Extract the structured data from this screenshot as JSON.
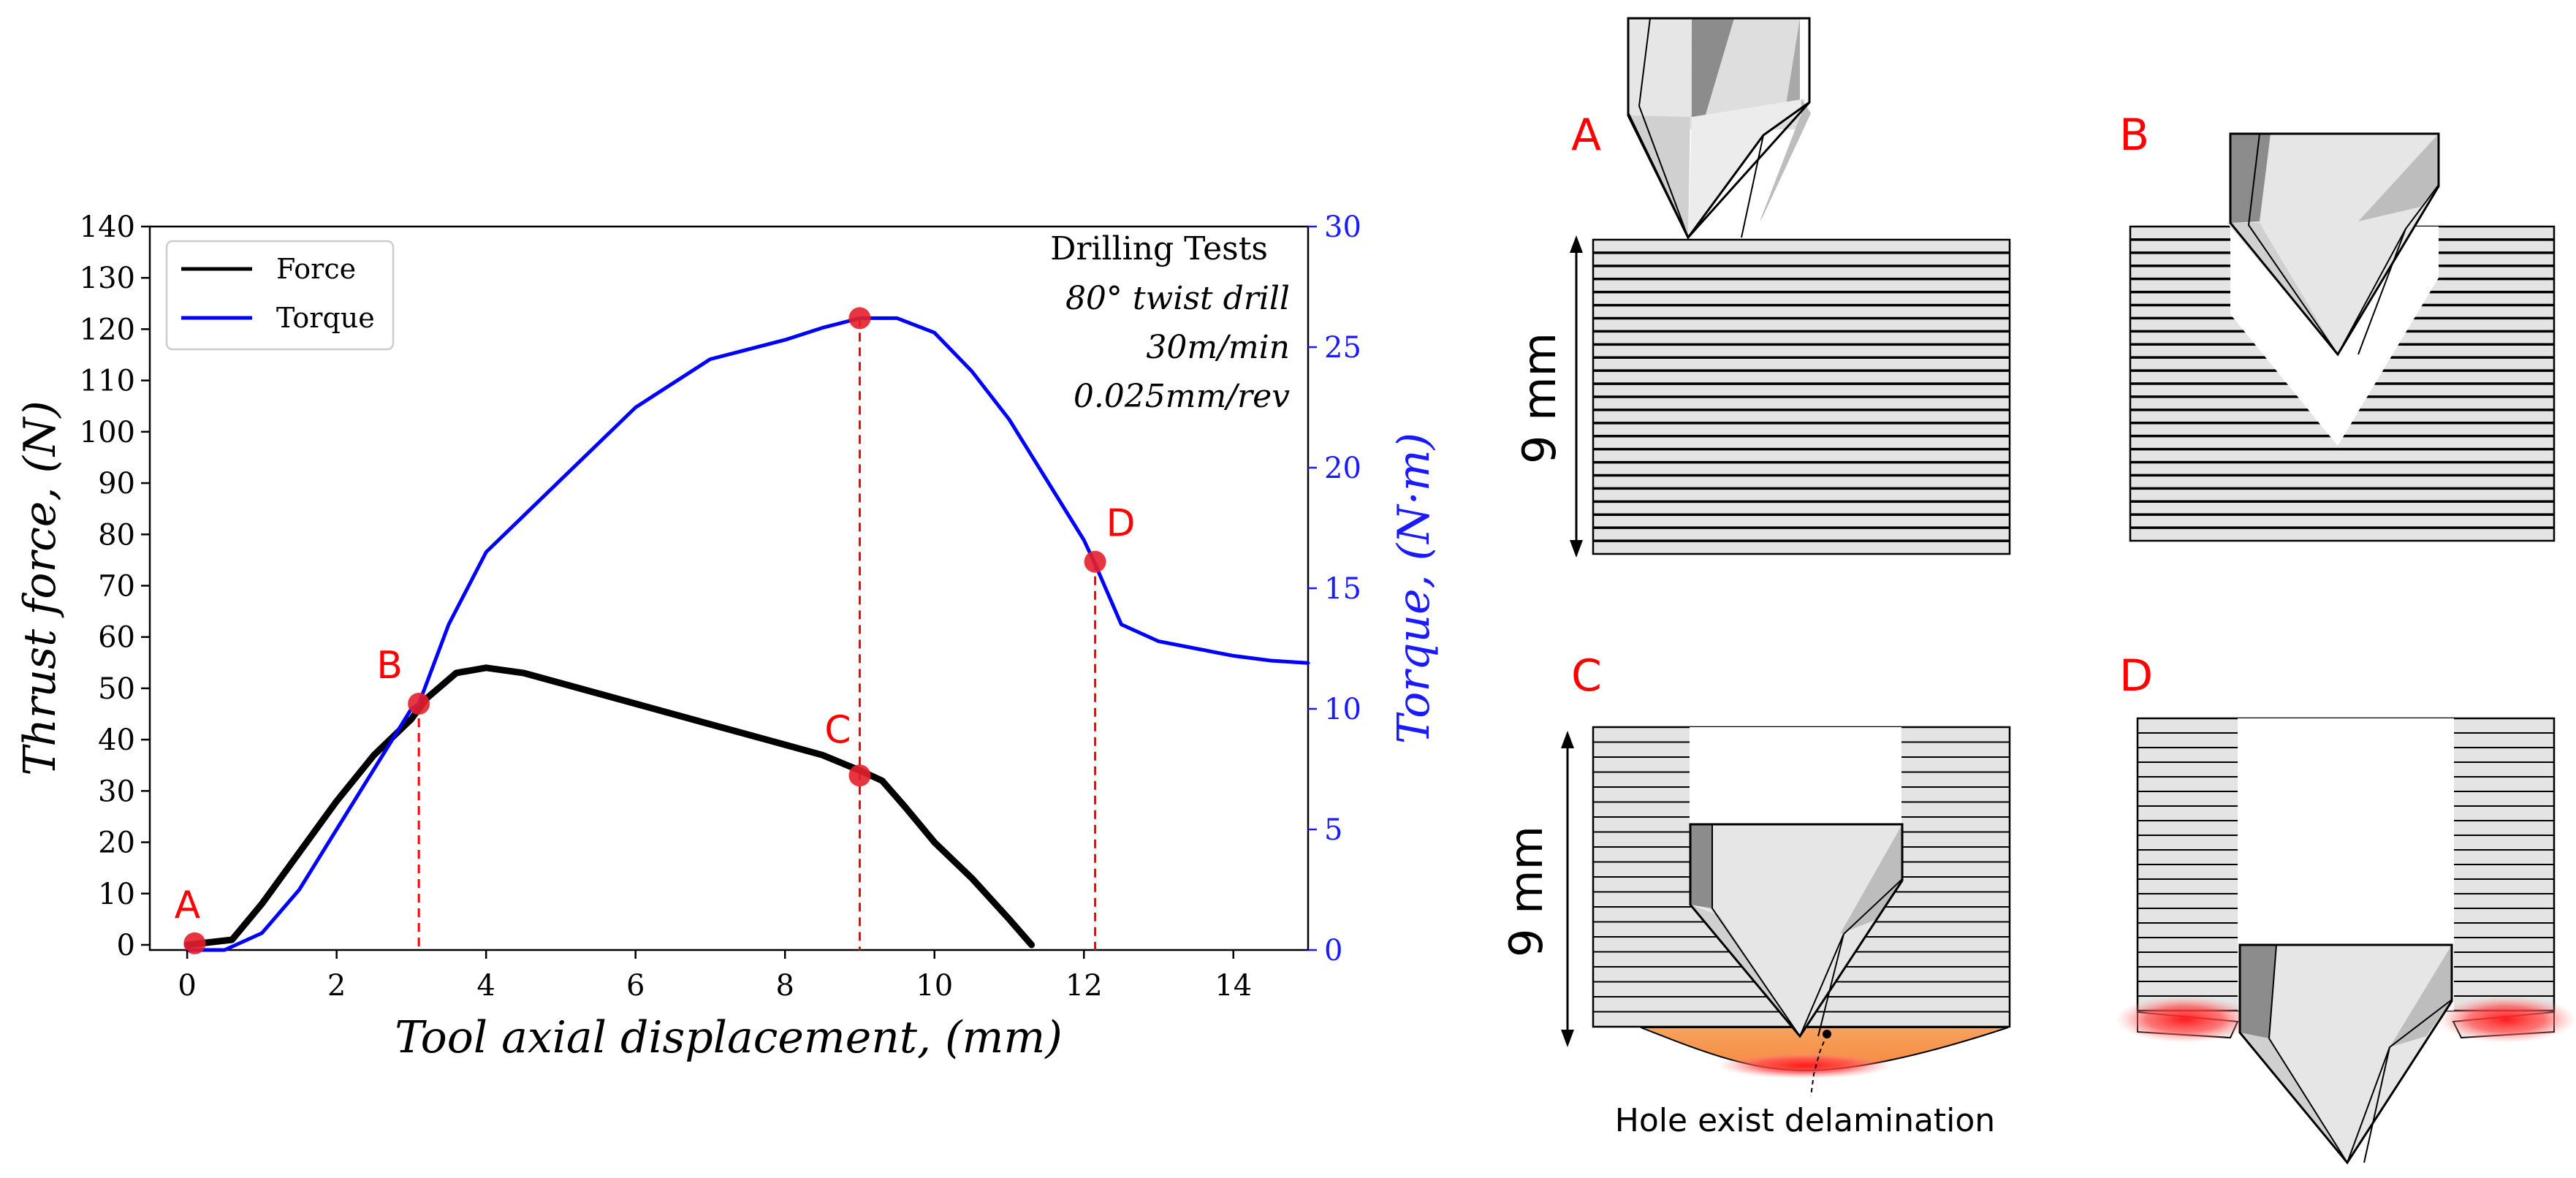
{
  "chart_data": {
    "type": "line",
    "xlabel": "Tool axial displacement, (mm)",
    "ylabel_left": "Thrust force, (N)",
    "ylabel_right": "Torque, (N·m)",
    "xlim": [
      -0.5,
      15
    ],
    "ylim_left": [
      -1,
      140
    ],
    "ylim_right": [
      0,
      30
    ],
    "xticks": [
      "0",
      "2",
      "4",
      "6",
      "8",
      "10",
      "12",
      "14"
    ],
    "yticks_left": [
      "0",
      "10",
      "20",
      "30",
      "40",
      "50",
      "60",
      "70",
      "80",
      "90",
      "100",
      "110",
      "120",
      "130",
      "140"
    ],
    "yticks_right": [
      "0",
      "5",
      "10",
      "15",
      "20",
      "25",
      "30"
    ],
    "grid": false,
    "legend_placement": "top-left",
    "annotation_lines": [
      "Drilling Tests",
      "80° twist drill",
      "30m/min",
      "0.025mm/rev"
    ],
    "series": [
      {
        "name": "Force",
        "color": "#000000",
        "axis": "left",
        "x": [
          0.0,
          0.6,
          1.0,
          1.5,
          2.0,
          2.5,
          3.0,
          3.2,
          3.6,
          4.0,
          4.5,
          5.0,
          6.0,
          7.0,
          8.0,
          8.5,
          9.0,
          9.3,
          9.6,
          10.0,
          10.5,
          11.0,
          11.3
        ],
        "y": [
          0,
          1,
          8,
          18,
          28,
          37,
          44,
          48,
          53,
          54,
          53,
          51,
          47,
          43,
          39,
          37,
          34,
          32,
          27,
          20,
          13,
          5,
          0
        ]
      },
      {
        "name": "Torque",
        "color": "#0000ff",
        "axis": "right",
        "x": [
          0.0,
          0.5,
          1.0,
          1.5,
          2.0,
          2.5,
          3.0,
          3.1,
          3.5,
          4.0,
          5.0,
          6.0,
          7.0,
          8.0,
          8.5,
          9.0,
          9.5,
          10.0,
          10.5,
          11.0,
          11.5,
          12.0,
          12.15,
          12.5,
          13.0,
          13.5,
          14.0,
          14.5,
          15.0
        ],
        "y": [
          0,
          0,
          0.7,
          2.5,
          5,
          7.5,
          10,
          10.2,
          13.5,
          16.5,
          19.5,
          22.5,
          24.5,
          25.3,
          25.8,
          26.2,
          26.2,
          25.6,
          24,
          22,
          19.5,
          17,
          16,
          13.5,
          12.8,
          12.5,
          12.2,
          12.0,
          11.9
        ]
      }
    ],
    "points": [
      {
        "label": "A",
        "x": 0.1,
        "y": 0.3,
        "axis": "left"
      },
      {
        "label": "B",
        "x": 3.1,
        "y": 47,
        "axis": "left"
      },
      {
        "label": "C",
        "x": 9.0,
        "y": 33,
        "axis": "left"
      },
      {
        "label": "D",
        "x": 12.15,
        "y": 16.1,
        "axis": "right"
      },
      {
        "x": 9.0,
        "y": 26.2,
        "axis": "right"
      }
    ],
    "vlines_x": [
      3.1,
      9.0,
      12.15
    ],
    "point_color": "#e4202c",
    "vline_color": "#ff0000"
  },
  "diagrams": {
    "label_color": "#ff0000",
    "panels": [
      "A",
      "B",
      "C",
      "D"
    ],
    "dimension_label": "9 mm",
    "caption": "Hole exist delamination"
  }
}
